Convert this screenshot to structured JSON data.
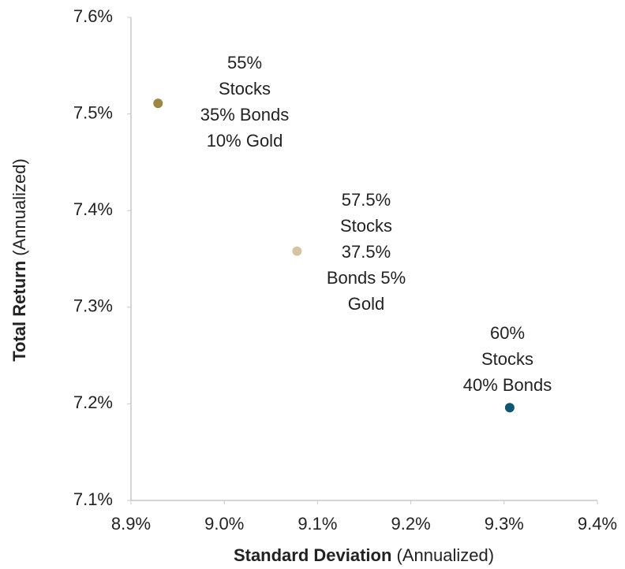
{
  "chart_data": {
    "type": "scatter",
    "x_label": {
      "main": "Standard Deviation",
      "note": "(Annualized)"
    },
    "y_label": {
      "main": "Total Return",
      "note": "(Annualized)"
    },
    "xlim": [
      8.9,
      9.4
    ],
    "ylim": [
      7.1,
      7.6
    ],
    "xticks": [
      {
        "value": 8.9,
        "label": "8.9%"
      },
      {
        "value": 9.0,
        "label": "9.0%"
      },
      {
        "value": 9.1,
        "label": "9.1%"
      },
      {
        "value": 9.2,
        "label": "9.2%"
      },
      {
        "value": 9.3,
        "label": "9.3%"
      },
      {
        "value": 9.4,
        "label": "9.4%"
      }
    ],
    "yticks": [
      {
        "value": 7.1,
        "label": "7.1%"
      },
      {
        "value": 7.2,
        "label": "7.2%"
      },
      {
        "value": 7.3,
        "label": "7.3%"
      },
      {
        "value": 7.4,
        "label": "7.4%"
      },
      {
        "value": 7.5,
        "label": "7.5%"
      },
      {
        "value": 7.6,
        "label": "7.6%"
      }
    ],
    "points": [
      {
        "x": 8.929,
        "y": 7.511,
        "color": "#9c8740",
        "label": [
          "55%",
          "Stocks",
          "35% Bonds",
          "10% Gold"
        ]
      },
      {
        "x": 9.078,
        "y": 7.358,
        "color": "#d4c4a4",
        "label": [
          "57.5%",
          "Stocks",
          "37.5%",
          "Bonds 5%",
          "Gold"
        ]
      },
      {
        "x": 9.306,
        "y": 7.196,
        "color": "#0f5670",
        "label": [
          "60%",
          "Stocks",
          "40% Bonds"
        ]
      }
    ]
  }
}
